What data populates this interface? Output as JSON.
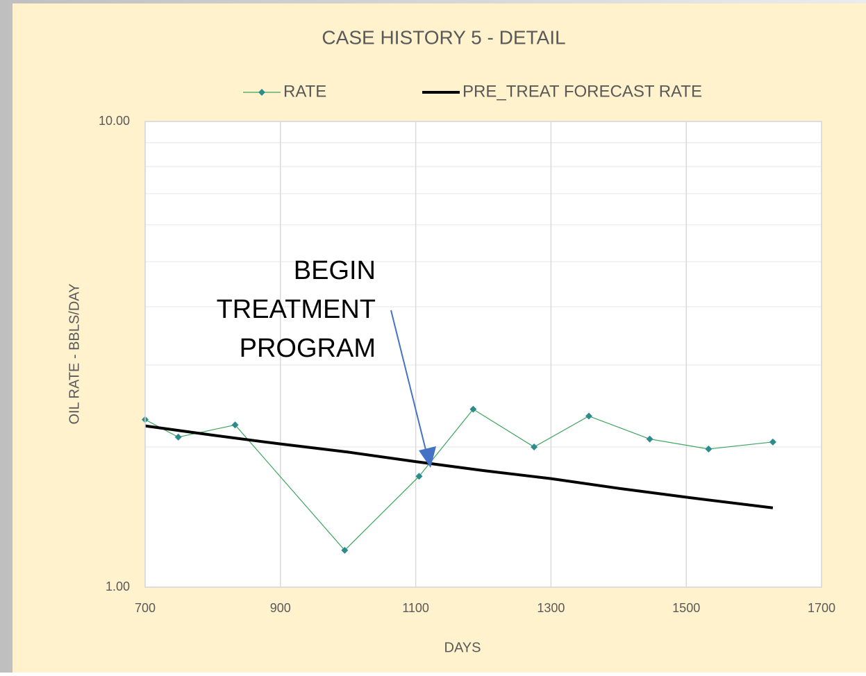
{
  "chart_data": {
    "type": "line",
    "title": "CASE HISTORY 5 - DETAIL",
    "x_label": "DAYS",
    "y_label": "OIL RATE - BBLS/DAY",
    "xlim": [
      700,
      1700
    ],
    "xticks": [
      700,
      900,
      1100,
      1300,
      1500,
      1700
    ],
    "ylim": [
      1,
      10
    ],
    "ylog": true,
    "yticks": [
      {
        "value": 1,
        "label": "1.00"
      },
      {
        "value": 10,
        "label": "10.00"
      }
    ],
    "yminorticks": [
      2,
      3,
      4,
      5,
      6,
      7,
      8,
      9
    ],
    "grid": true,
    "series": [
      {
        "name": "RATE",
        "color": "#3aa35c",
        "marker_color": "#2e8b8b",
        "marker": "diamond",
        "width": 1.2,
        "x": [
          700,
          749,
          833,
          995,
          1105,
          1185,
          1275,
          1356,
          1446,
          1533,
          1628
        ],
        "values": [
          2.29,
          2.1,
          2.23,
          1.2,
          1.73,
          2.41,
          2.0,
          2.33,
          2.08,
          1.98,
          2.05
        ]
      },
      {
        "name": "PRE_TREAT FORECAST RATE",
        "color": "#000000",
        "marker": "none",
        "width": 4,
        "x": [
          700,
          800,
          900,
          1000,
          1100,
          1200,
          1300,
          1400,
          1500,
          1628
        ],
        "values": [
          2.22,
          2.12,
          2.03,
          1.95,
          1.86,
          1.78,
          1.71,
          1.63,
          1.56,
          1.48
        ]
      }
    ],
    "annotation": {
      "lines": [
        "BEGIN",
        "TREATMENT",
        "PROGRAM"
      ],
      "color": "#4472c4"
    }
  }
}
